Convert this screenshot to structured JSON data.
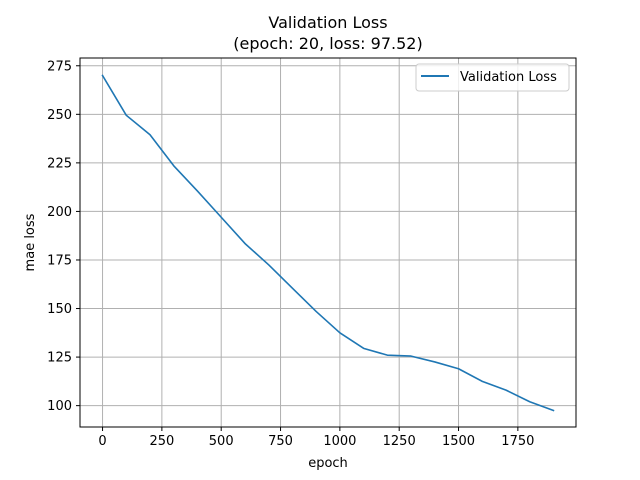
{
  "chart_data": {
    "type": "line",
    "title": "Validation Loss",
    "subtitle": "(epoch: 20, loss: 97.52)",
    "xlabel": "epoch",
    "ylabel": "mae loss",
    "xlim": [
      -95,
      1995
    ],
    "ylim": [
      89,
      279
    ],
    "xticks": [
      0,
      250,
      500,
      750,
      1000,
      1250,
      1500,
      1750
    ],
    "yticks": [
      100,
      125,
      150,
      175,
      200,
      225,
      250,
      275
    ],
    "grid": true,
    "legend_position": "upper-right",
    "series": [
      {
        "name": "Validation Loss",
        "color": "#1f77b4",
        "x": [
          0,
          100,
          200,
          300,
          400,
          500,
          600,
          700,
          800,
          900,
          1000,
          1100,
          1200,
          1300,
          1400,
          1500,
          1600,
          1700,
          1800,
          1900
        ],
        "y": [
          270,
          249.5,
          239.5,
          223.5,
          210.5,
          197,
          183.5,
          172.5,
          160.5,
          148.5,
          137.5,
          129.5,
          126,
          125.5,
          122.5,
          119,
          112.5,
          108,
          102,
          97.52
        ]
      }
    ]
  }
}
